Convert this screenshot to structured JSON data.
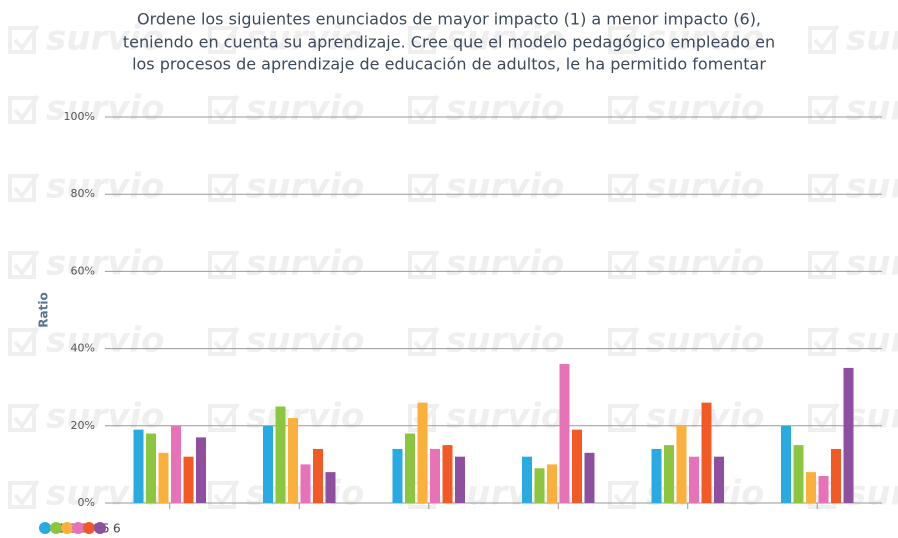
{
  "chart_data": {
    "type": "bar",
    "title": [
      "Ordene los siguientes enunciados de mayor impacto (1) a menor impacto (6),",
      "teniendo en cuenta su aprendizaje. Cree que el modelo pedagógico empleado en",
      "los procesos de aprendizaje de educación de adultos, le ha permitido fomentar"
    ],
    "watermark": "survio",
    "y_label": "Ratio",
    "categories": [
      null,
      null,
      null,
      null,
      null,
      null
    ],
    "series": [
      {
        "name": "1",
        "color": "#29aae1",
        "values": [
          19,
          20,
          14,
          12,
          14,
          20
        ]
      },
      {
        "name": "2",
        "color": "#8cc63f",
        "values": [
          18,
          25,
          18,
          9,
          15,
          15
        ]
      },
      {
        "name": "3",
        "color": "#fbb03b",
        "values": [
          13,
          22,
          26,
          10,
          20,
          8
        ]
      },
      {
        "name": "4",
        "color": "#e872b8",
        "values": [
          20,
          10,
          14,
          36,
          12,
          7
        ]
      },
      {
        "name": "5",
        "color": "#f15a24",
        "values": [
          12,
          14,
          15,
          19,
          26,
          14
        ]
      },
      {
        "name": "6",
        "color": "#8e4fa1",
        "values": [
          17,
          8,
          12,
          13,
          12,
          35
        ]
      }
    ],
    "ylim": [
      0,
      100
    ],
    "yticks": [
      {
        "value": 0,
        "label": "0%"
      },
      {
        "value": 20,
        "label": "20%"
      },
      {
        "value": 40,
        "label": "40%"
      },
      {
        "value": 60,
        "label": "60%"
      },
      {
        "value": 80,
        "label": "80%"
      },
      {
        "value": 100,
        "label": "100%"
      }
    ],
    "grid": true,
    "legend": "bottom-left"
  }
}
